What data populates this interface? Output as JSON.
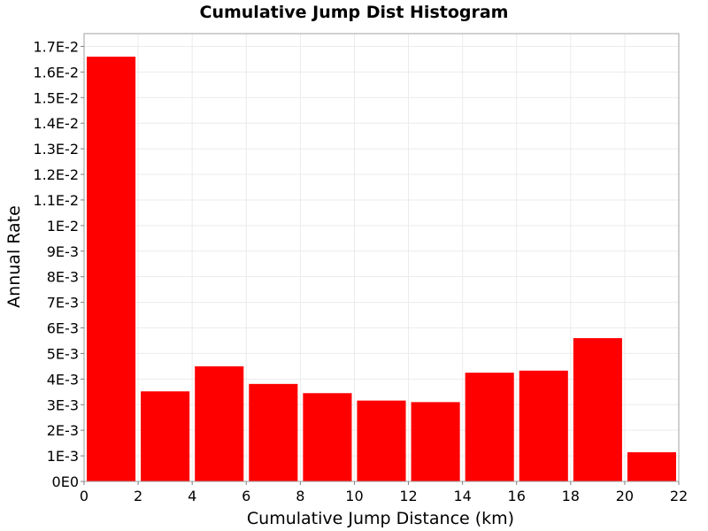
{
  "chart_data": {
    "type": "bar",
    "title": "Cumulative Jump Dist Histogram",
    "xlabel": "Cumulative Jump Distance (km)",
    "ylabel": "Annual Rate",
    "xlim": [
      0,
      22
    ],
    "ylim": [
      0,
      0.0175
    ],
    "grid": true,
    "legend": "none",
    "bar_color": "#ff0000",
    "bin_width": 2,
    "bins": [
      {
        "x_start": 0,
        "x_end": 2,
        "value": 0.0166
      },
      {
        "x_start": 2,
        "x_end": 4,
        "value": 0.00352
      },
      {
        "x_start": 4,
        "x_end": 6,
        "value": 0.0045
      },
      {
        "x_start": 6,
        "x_end": 8,
        "value": 0.00381
      },
      {
        "x_start": 8,
        "x_end": 10,
        "value": 0.00345
      },
      {
        "x_start": 10,
        "x_end": 12,
        "value": 0.00316
      },
      {
        "x_start": 12,
        "x_end": 14,
        "value": 0.0031
      },
      {
        "x_start": 14,
        "x_end": 16,
        "value": 0.00425
      },
      {
        "x_start": 16,
        "x_end": 18,
        "value": 0.00433
      },
      {
        "x_start": 18,
        "x_end": 20,
        "value": 0.0056
      },
      {
        "x_start": 20,
        "x_end": 22,
        "value": 0.00114
      }
    ],
    "x_ticks": [
      {
        "value": 0,
        "label": "0"
      },
      {
        "value": 2,
        "label": "2"
      },
      {
        "value": 4,
        "label": "4"
      },
      {
        "value": 6,
        "label": "6"
      },
      {
        "value": 8,
        "label": "8"
      },
      {
        "value": 10,
        "label": "10"
      },
      {
        "value": 12,
        "label": "12"
      },
      {
        "value": 14,
        "label": "14"
      },
      {
        "value": 16,
        "label": "16"
      },
      {
        "value": 18,
        "label": "18"
      },
      {
        "value": 20,
        "label": "20"
      },
      {
        "value": 22,
        "label": "22"
      }
    ],
    "y_ticks": [
      {
        "value": 0,
        "label": "0E0"
      },
      {
        "value": 0.001,
        "label": "1E-3"
      },
      {
        "value": 0.002,
        "label": "2E-3"
      },
      {
        "value": 0.003,
        "label": "3E-3"
      },
      {
        "value": 0.004,
        "label": "4E-3"
      },
      {
        "value": 0.005,
        "label": "5E-3"
      },
      {
        "value": 0.006,
        "label": "6E-3"
      },
      {
        "value": 0.007,
        "label": "7E-3"
      },
      {
        "value": 0.008,
        "label": "8E-3"
      },
      {
        "value": 0.009,
        "label": "9E-3"
      },
      {
        "value": 0.01,
        "label": "1E-2"
      },
      {
        "value": 0.011,
        "label": "1.1E-2"
      },
      {
        "value": 0.012,
        "label": "1.2E-2"
      },
      {
        "value": 0.013,
        "label": "1.3E-2"
      },
      {
        "value": 0.014,
        "label": "1.4E-2"
      },
      {
        "value": 0.015,
        "label": "1.5E-2"
      },
      {
        "value": 0.016,
        "label": "1.6E-2"
      },
      {
        "value": 0.017,
        "label": "1.7E-2"
      }
    ]
  }
}
